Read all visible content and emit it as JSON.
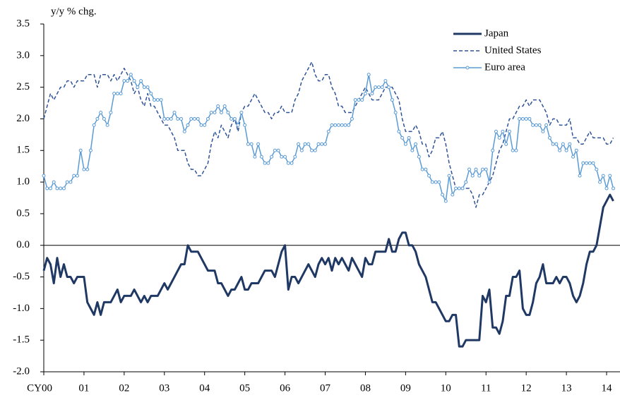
{
  "chart_data": {
    "type": "line",
    "y_label": "y/y % chg.",
    "x": [
      0,
      1,
      2,
      3,
      4,
      5,
      6,
      7,
      8,
      9,
      10,
      11,
      12,
      13,
      14,
      15,
      16,
      17,
      18,
      19,
      20,
      21,
      22,
      23,
      24,
      25,
      26,
      27,
      28,
      29,
      30,
      31,
      32,
      33,
      34,
      35,
      36,
      37,
      38,
      39,
      40,
      41,
      42,
      43,
      44,
      45,
      46,
      47,
      48,
      49,
      50,
      51,
      52,
      53,
      54,
      55,
      56,
      57,
      58,
      59,
      60,
      61,
      62,
      63,
      64,
      65,
      66,
      67,
      68,
      69,
      70,
      71,
      72,
      73,
      74,
      75,
      76,
      77,
      78,
      79,
      80,
      81,
      82,
      83,
      84,
      85,
      86,
      87,
      88,
      89,
      90,
      91,
      92,
      93,
      94,
      95,
      96,
      97,
      98,
      99,
      100,
      101,
      102,
      103,
      104,
      105,
      106,
      107,
      108,
      109,
      110,
      111,
      112,
      113,
      114,
      115,
      116,
      117,
      118,
      119,
      120,
      121,
      122,
      123,
      124,
      125,
      126,
      127,
      128,
      129,
      130,
      131,
      132,
      133,
      134,
      135,
      136,
      137,
      138,
      139,
      140,
      141,
      142,
      143,
      144,
      145,
      146,
      147,
      148,
      149,
      150,
      151,
      152,
      153,
      154,
      155,
      156,
      157,
      158,
      159,
      160,
      161,
      162,
      163,
      164,
      165,
      166,
      167,
      168,
      169,
      170
    ],
    "xlim": [
      0,
      172
    ],
    "xticks": [
      {
        "value": 0,
        "label": "CY00"
      },
      {
        "value": 12,
        "label": "01"
      },
      {
        "value": 24,
        "label": "02"
      },
      {
        "value": 36,
        "label": "03"
      },
      {
        "value": 48,
        "label": "04"
      },
      {
        "value": 60,
        "label": "05"
      },
      {
        "value": 72,
        "label": "06"
      },
      {
        "value": 84,
        "label": "07"
      },
      {
        "value": 96,
        "label": "08"
      },
      {
        "value": 108,
        "label": "09"
      },
      {
        "value": 120,
        "label": "10"
      },
      {
        "value": 132,
        "label": "11"
      },
      {
        "value": 144,
        "label": "12"
      },
      {
        "value": 156,
        "label": "13"
      },
      {
        "value": 168,
        "label": "14"
      }
    ],
    "ylim": [
      -2,
      3.5
    ],
    "yticks": [
      {
        "value": -2,
        "label": "-2.0"
      },
      -1.5,
      {
        "value": -1,
        "label": "-1.0"
      },
      -0.5,
      {
        "value": 0,
        "label": "0.0"
      },
      0.5,
      {
        "value": 1,
        "label": "1.0"
      },
      1.5,
      {
        "value": 2,
        "label": "2.0"
      },
      2.5,
      {
        "value": 3,
        "label": "3.0"
      },
      3.5
    ],
    "legend": "upper right",
    "series": [
      {
        "name": "Japan",
        "color": "#1f3864",
        "style": "solid",
        "width": 3,
        "marker": "none",
        "values": [
          -0.4,
          -0.2,
          -0.3,
          -0.6,
          -0.2,
          -0.5,
          -0.3,
          -0.5,
          -0.5,
          -0.6,
          -0.5,
          -0.5,
          -0.5,
          -0.9,
          -1.0,
          -1.1,
          -0.9,
          -1.1,
          -0.9,
          -0.9,
          -0.9,
          -0.8,
          -0.7,
          -0.9,
          -0.8,
          -0.8,
          -0.8,
          -0.7,
          -0.8,
          -0.9,
          -0.8,
          -0.9,
          -0.8,
          -0.8,
          -0.8,
          -0.7,
          -0.6,
          -0.7,
          -0.6,
          -0.5,
          -0.4,
          -0.3,
          -0.3,
          0.0,
          -0.1,
          -0.1,
          -0.1,
          -0.2,
          -0.3,
          -0.4,
          -0.4,
          -0.4,
          -0.6,
          -0.6,
          -0.7,
          -0.8,
          -0.7,
          -0.7,
          -0.6,
          -0.5,
          -0.7,
          -0.7,
          -0.6,
          -0.6,
          -0.6,
          -0.5,
          -0.4,
          -0.4,
          -0.4,
          -0.5,
          -0.3,
          -0.1,
          0.0,
          -0.7,
          -0.5,
          -0.5,
          -0.6,
          -0.5,
          -0.4,
          -0.3,
          -0.4,
          -0.5,
          -0.3,
          -0.2,
          -0.3,
          -0.2,
          -0.4,
          -0.2,
          -0.3,
          -0.2,
          -0.3,
          -0.4,
          -0.2,
          -0.3,
          -0.4,
          -0.5,
          -0.2,
          -0.3,
          -0.3,
          -0.1,
          -0.1,
          -0.1,
          -0.1,
          0.1,
          -0.1,
          -0.1,
          0.1,
          0.2,
          0.2,
          0.0,
          0.0,
          -0.1,
          -0.3,
          -0.4,
          -0.5,
          -0.7,
          -0.9,
          -0.9,
          -1.0,
          -1.1,
          -1.2,
          -1.2,
          -1.1,
          -1.1,
          -1.6,
          -1.6,
          -1.5,
          -1.5,
          -1.5,
          -1.5,
          -1.5,
          -0.8,
          -0.9,
          -0.7,
          -1.3,
          -1.3,
          -1.4,
          -1.2,
          -0.8,
          -0.8,
          -0.5,
          -0.5,
          -0.4,
          -1.0,
          -1.1,
          -1.1,
          -0.9,
          -0.6,
          -0.5,
          -0.3,
          -0.6,
          -0.6,
          -0.6,
          -0.5,
          -0.6,
          -0.5,
          -0.5,
          -0.6,
          -0.8,
          -0.9,
          -0.8,
          -0.6,
          -0.3,
          -0.1,
          -0.1,
          0.0,
          0.3,
          0.6,
          0.7,
          0.8,
          0.7
        ]
      },
      {
        "name": "United States",
        "color": "#2f5496",
        "style": "dashed",
        "width": 1.5,
        "marker": "none",
        "values": [
          2.0,
          2.2,
          2.4,
          2.3,
          2.4,
          2.5,
          2.5,
          2.6,
          2.6,
          2.5,
          2.6,
          2.6,
          2.6,
          2.7,
          2.7,
          2.7,
          2.5,
          2.7,
          2.7,
          2.7,
          2.6,
          2.7,
          2.6,
          2.7,
          2.8,
          2.7,
          2.6,
          2.4,
          2.5,
          2.3,
          2.2,
          2.4,
          2.2,
          2.2,
          2.1,
          2.0,
          1.9,
          1.9,
          1.8,
          1.7,
          1.5,
          1.5,
          1.5,
          1.3,
          1.2,
          1.2,
          1.1,
          1.1,
          1.2,
          1.3,
          1.6,
          1.8,
          1.7,
          1.9,
          1.8,
          1.7,
          1.9,
          2.0,
          1.8,
          2.1,
          2.2,
          2.2,
          2.3,
          2.4,
          2.3,
          2.2,
          2.1,
          2.1,
          2.0,
          2.1,
          2.1,
          2.2,
          2.1,
          2.1,
          2.1,
          2.3,
          2.4,
          2.6,
          2.7,
          2.8,
          2.9,
          2.7,
          2.6,
          2.6,
          2.7,
          2.7,
          2.5,
          2.4,
          2.2,
          2.2,
          2.1,
          2.1,
          2.1,
          2.2,
          2.3,
          2.4,
          2.5,
          2.4,
          2.3,
          2.3,
          2.3,
          2.4,
          2.5,
          2.5,
          2.5,
          2.4,
          2.3,
          2.0,
          1.8,
          1.8,
          1.8,
          1.9,
          1.8,
          1.6,
          1.6,
          1.4,
          1.5,
          1.7,
          1.7,
          1.8,
          1.6,
          1.3,
          1.1,
          0.9,
          0.9,
          0.9,
          0.9,
          0.9,
          0.8,
          0.6,
          0.8,
          0.8,
          0.9,
          1.0,
          1.1,
          1.3,
          1.5,
          1.6,
          1.8,
          2.0,
          2.0,
          2.1,
          2.2,
          2.2,
          2.3,
          2.2,
          2.3,
          2.3,
          2.3,
          2.2,
          2.1,
          1.9,
          2.0,
          2.0,
          1.9,
          1.9,
          1.9,
          2.0,
          1.7,
          1.7,
          1.6,
          1.6,
          1.7,
          1.8,
          1.7,
          1.7,
          1.7,
          1.7,
          1.6,
          1.6,
          1.7
        ]
      },
      {
        "name": "Euro area",
        "color": "#5b9bd5",
        "style": "solid",
        "width": 1.5,
        "marker": "circle",
        "values": [
          1.1,
          0.9,
          0.9,
          1.0,
          0.9,
          0.9,
          0.9,
          1.0,
          1.0,
          1.1,
          1.1,
          1.5,
          1.2,
          1.2,
          1.5,
          1.9,
          2.0,
          2.1,
          2.0,
          1.9,
          2.1,
          2.4,
          2.4,
          2.4,
          2.6,
          2.6,
          2.7,
          2.6,
          2.5,
          2.6,
          2.5,
          2.5,
          2.4,
          2.3,
          2.3,
          2.3,
          2.0,
          2.0,
          2.0,
          2.1,
          2.0,
          2.0,
          1.8,
          1.9,
          2.0,
          2.0,
          2.0,
          1.9,
          1.9,
          2.0,
          2.1,
          2.1,
          2.2,
          2.1,
          2.2,
          2.1,
          2.0,
          2.0,
          1.9,
          2.1,
          1.9,
          1.6,
          1.6,
          1.4,
          1.6,
          1.4,
          1.3,
          1.3,
          1.4,
          1.5,
          1.5,
          1.4,
          1.4,
          1.3,
          1.3,
          1.4,
          1.6,
          1.5,
          1.6,
          1.6,
          1.5,
          1.5,
          1.6,
          1.6,
          1.6,
          1.8,
          1.9,
          1.9,
          1.9,
          1.9,
          1.9,
          1.9,
          2.0,
          2.3,
          2.3,
          2.3,
          2.4,
          2.7,
          2.4,
          2.5,
          2.5,
          2.5,
          2.6,
          2.5,
          2.3,
          2.1,
          1.8,
          1.7,
          1.6,
          1.7,
          1.5,
          1.6,
          1.4,
          1.2,
          1.2,
          1.1,
          1.0,
          1.0,
          1.0,
          0.8,
          0.7,
          1.1,
          0.8,
          0.9,
          0.9,
          0.9,
          1.0,
          1.2,
          1.1,
          1.2,
          1.1,
          1.2,
          1.2,
          1.0,
          1.5,
          1.8,
          1.7,
          1.8,
          1.6,
          1.8,
          1.5,
          1.5,
          2.0,
          2.0,
          2.0,
          2.0,
          1.9,
          1.9,
          1.9,
          1.8,
          1.9,
          1.7,
          1.6,
          1.6,
          1.5,
          1.6,
          1.5,
          1.6,
          1.4,
          1.5,
          1.1,
          1.3,
          1.3,
          1.3,
          1.3,
          1.2,
          1.0,
          1.1,
          0.9,
          1.1,
          0.9
        ]
      }
    ]
  }
}
